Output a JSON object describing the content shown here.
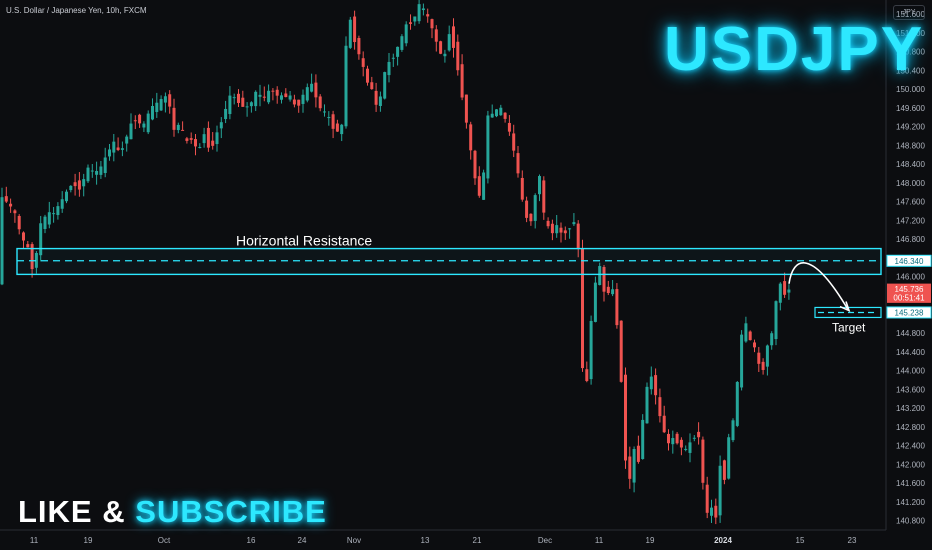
{
  "header": {
    "title": "U.S. Dollar / Japanese Yen, 10h, FXCM",
    "currency_badge": "JPY"
  },
  "brand_text": "USDJPY",
  "cta": {
    "like": "LIKE",
    "amp": "&",
    "subscribe": "SUBSCRIBE"
  },
  "colors": {
    "up": "#26a69a",
    "down": "#ef5350",
    "accent": "#2de8ff",
    "bg": "#0c0d10",
    "text": "#aeb3bd"
  },
  "chart_data": {
    "type": "candlestick",
    "title": "U.S. Dollar / Japanese Yen, 10h, FXCM",
    "ylim": [
      140.6,
      151.9
    ],
    "y_ticks": [
      "140.800",
      "141.200",
      "141.600",
      "142.000",
      "142.400",
      "142.800",
      "143.200",
      "143.600",
      "144.000",
      "144.400",
      "144.800",
      "145.200",
      "145.600",
      "146.000",
      "146.400",
      "146.800",
      "147.200",
      "147.600",
      "148.000",
      "148.400",
      "148.800",
      "149.200",
      "149.600",
      "150.000",
      "150.400",
      "150.800",
      "151.200",
      "151.600"
    ],
    "x_ticks": [
      "11",
      "19",
      "Oct",
      "16",
      "24",
      "Nov",
      "13",
      "21",
      "Dec",
      "11",
      "19",
      "2024",
      "15",
      "23"
    ],
    "price_labels": [
      {
        "text": "146.340",
        "value": 146.34,
        "kind": "resistance"
      },
      {
        "text": "145.736",
        "value": 145.736,
        "kind": "last"
      },
      {
        "text": "00:51:41",
        "value": 145.56,
        "kind": "countdown"
      },
      {
        "text": "145.238",
        "value": 145.238,
        "kind": "target"
      }
    ],
    "annotations": {
      "resistance_zone": {
        "label": "Horizontal Resistance",
        "low": 146.05,
        "high": 146.6,
        "level": 146.34
      },
      "target": {
        "label": "Target",
        "level": 145.238
      }
    },
    "path": [
      [
        0,
        147.9
      ],
      [
        8,
        147.6
      ],
      [
        16,
        147.4
      ],
      [
        24,
        146.8
      ],
      [
        30,
        146.6
      ],
      [
        36,
        146.05
      ],
      [
        42,
        147.1
      ],
      [
        50,
        147.3
      ],
      [
        58,
        147.4
      ],
      [
        66,
        147.7
      ],
      [
        74,
        148.0
      ],
      [
        82,
        147.9
      ],
      [
        90,
        148.3
      ],
      [
        98,
        148.2
      ],
      [
        106,
        148.4
      ],
      [
        114,
        148.9
      ],
      [
        122,
        148.6
      ],
      [
        130,
        149.1
      ],
      [
        138,
        149.4
      ],
      [
        146,
        149.2
      ],
      [
        154,
        149.6
      ],
      [
        162,
        149.7
      ],
      [
        170,
        149.9
      ],
      [
        176,
        149.1
      ],
      [
        182,
        149.3
      ],
      [
        188,
        148.8
      ],
      [
        194,
        149.0
      ],
      [
        200,
        148.6
      ],
      [
        206,
        149.1
      ],
      [
        212,
        148.7
      ],
      [
        218,
        149.0
      ],
      [
        226,
        149.5
      ],
      [
        234,
        149.9
      ],
      [
        242,
        149.7
      ],
      [
        250,
        149.6
      ],
      [
        258,
        149.9
      ],
      [
        266,
        149.8
      ],
      [
        274,
        150.0
      ],
      [
        282,
        149.8
      ],
      [
        290,
        149.9
      ],
      [
        298,
        149.6
      ],
      [
        306,
        149.9
      ],
      [
        314,
        150.1
      ],
      [
        322,
        149.6
      ],
      [
        330,
        149.4
      ],
      [
        338,
        149.1
      ],
      [
        344,
        149.2
      ],
      [
        350,
        151.7
      ],
      [
        356,
        151.1
      ],
      [
        362,
        150.7
      ],
      [
        368,
        150.2
      ],
      [
        374,
        150.0
      ],
      [
        380,
        149.5
      ],
      [
        386,
        150.3
      ],
      [
        392,
        150.6
      ],
      [
        398,
        150.8
      ],
      [
        404,
        151.1
      ],
      [
        410,
        151.4
      ],
      [
        416,
        151.5
      ],
      [
        422,
        151.8
      ],
      [
        428,
        151.6
      ],
      [
        434,
        151.3
      ],
      [
        440,
        150.9
      ],
      [
        446,
        150.6
      ],
      [
        452,
        151.3
      ],
      [
        458,
        150.7
      ],
      [
        464,
        149.9
      ],
      [
        470,
        149.1
      ],
      [
        476,
        148.2
      ],
      [
        482,
        147.7
      ],
      [
        486,
        148.2
      ],
      [
        490,
        149.4
      ],
      [
        496,
        149.5
      ],
      [
        502,
        149.6
      ],
      [
        508,
        149.3
      ],
      [
        514,
        148.9
      ],
      [
        520,
        148.2
      ],
      [
        526,
        147.4
      ],
      [
        532,
        147.1
      ],
      [
        538,
        147.8
      ],
      [
        542,
        148.2
      ],
      [
        546,
        147.3
      ],
      [
        552,
        146.9
      ],
      [
        558,
        147.1
      ],
      [
        564,
        146.9
      ],
      [
        570,
        147.0
      ],
      [
        576,
        147.2
      ],
      [
        580,
        146.8
      ],
      [
        584,
        144.2
      ],
      [
        588,
        143.4
      ],
      [
        592,
        144.9
      ],
      [
        596,
        145.5
      ],
      [
        600,
        146.4
      ],
      [
        604,
        146.0
      ],
      [
        608,
        145.4
      ],
      [
        612,
        145.9
      ],
      [
        616,
        145.6
      ],
      [
        620,
        144.8
      ],
      [
        624,
        143.6
      ],
      [
        628,
        142.0
      ],
      [
        632,
        141.7
      ],
      [
        636,
        142.3
      ],
      [
        640,
        142.0
      ],
      [
        644,
        142.8
      ],
      [
        648,
        143.5
      ],
      [
        652,
        143.9
      ],
      [
        656,
        143.8
      ],
      [
        660,
        143.1
      ],
      [
        664,
        142.9
      ],
      [
        670,
        142.4
      ],
      [
        676,
        142.6
      ],
      [
        682,
        142.4
      ],
      [
        688,
        142.3
      ],
      [
        694,
        142.5
      ],
      [
        700,
        142.8
      ],
      [
        704,
        141.8
      ],
      [
        708,
        140.9
      ],
      [
        712,
        141.1
      ],
      [
        718,
        140.9
      ],
      [
        722,
        142.0
      ],
      [
        726,
        141.6
      ],
      [
        730,
        142.5
      ],
      [
        734,
        142.8
      ],
      [
        738,
        143.2
      ],
      [
        742,
        144.6
      ],
      [
        746,
        144.9
      ],
      [
        750,
        145.0
      ],
      [
        754,
        144.3
      ],
      [
        758,
        144.6
      ],
      [
        762,
        143.9
      ],
      [
        766,
        144.1
      ],
      [
        770,
        144.6
      ],
      [
        774,
        144.8
      ],
      [
        778,
        145.4
      ],
      [
        782,
        145.9
      ],
      [
        786,
        145.6
      ],
      [
        789,
        145.74
      ]
    ]
  }
}
